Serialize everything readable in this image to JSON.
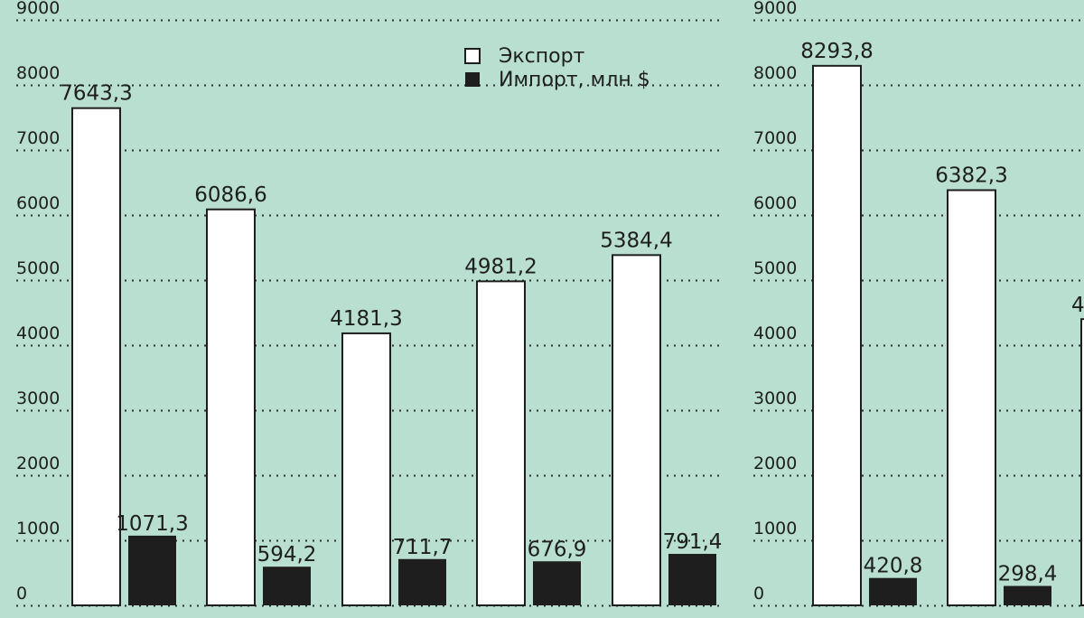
{
  "background": "#b9dfd1",
  "colors": {
    "export": "#ffffff",
    "import": "#1e1e1e",
    "outline": "#1e1e1e",
    "grid": "#2b2b2b"
  },
  "legend": {
    "export_label": "Экспорт",
    "import_label": "Импорт, млн $"
  },
  "chart_data": [
    {
      "type": "bar",
      "ylim": [
        0,
        9000
      ],
      "yticks": [
        "0",
        "1000",
        "2000",
        "3000",
        "4000",
        "5000",
        "6000",
        "7000",
        "8000",
        "9000"
      ],
      "grid": true,
      "legend_position": "top-right",
      "categories": [
        "",
        "",
        "",
        "",
        ""
      ],
      "series": [
        {
          "name": "Экспорт",
          "values": [
            7643.3,
            6086.6,
            4181.3,
            4981.2,
            5384.4
          ],
          "labels": [
            "7643,3",
            "6086,6",
            "4181,3",
            "4981,2",
            "5384,4"
          ]
        },
        {
          "name": "Импорт, млн $",
          "values": [
            1071.3,
            594.2,
            711.7,
            676.9,
            791.4
          ],
          "labels": [
            "1071,3",
            "594,2",
            "711,7",
            "676,9",
            "791,4"
          ]
        }
      ]
    },
    {
      "type": "bar",
      "ylim": [
        0,
        9000
      ],
      "yticks": [
        "0",
        "1000",
        "2000",
        "3000",
        "4000",
        "5000",
        "6000",
        "7000",
        "8000",
        "9000"
      ],
      "grid": true,
      "categories": [
        "",
        ""
      ],
      "series": [
        {
          "name": "Экспорт",
          "values": [
            8293.8,
            6382.3
          ],
          "labels": [
            "8293,8",
            "6382,3"
          ]
        },
        {
          "name": "Импорт, млн $",
          "values": [
            420.8,
            298.4
          ],
          "labels": [
            "420,8",
            "298,4"
          ]
        }
      ],
      "partial_cut_value": 4400,
      "partial_cut_label": "4"
    }
  ]
}
